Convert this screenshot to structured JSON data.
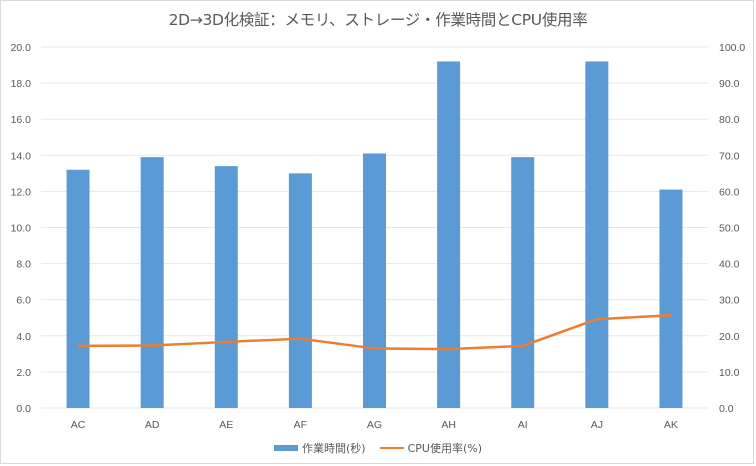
{
  "chart_data": {
    "type": "bar+line",
    "title": "2D→3D化検証：メモリ、ストレージ・作業時間とCPU使用率",
    "categories": [
      "AC",
      "AD",
      "AE",
      "AF",
      "AG",
      "AH",
      "AI",
      "AJ",
      "AK"
    ],
    "series": [
      {
        "name": "作業時間(秒)",
        "type": "bar",
        "axis": "left",
        "color": "#5B9BD5",
        "values": [
          13.2,
          13.9,
          13.4,
          13.0,
          14.1,
          19.2,
          13.9,
          19.2,
          12.1
        ]
      },
      {
        "name": "CPU使用率(%)",
        "type": "line",
        "axis": "right",
        "color": "#ED7D31",
        "values": [
          17.2,
          17.3,
          18.3,
          19.2,
          16.5,
          16.3,
          17.2,
          24.6,
          25.7
        ]
      }
    ],
    "y_left": {
      "ylim": [
        0,
        20
      ],
      "ticks": [
        "0.0",
        "2.0",
        "4.0",
        "6.0",
        "8.0",
        "10.0",
        "12.0",
        "14.0",
        "16.0",
        "18.0",
        "20.0"
      ]
    },
    "y_right": {
      "ylim": [
        0,
        100
      ],
      "ticks": [
        "0.0",
        "10.0",
        "20.0",
        "30.0",
        "40.0",
        "50.0",
        "60.0",
        "70.0",
        "80.0",
        "90.0",
        "100.0"
      ]
    },
    "grid": true,
    "legend_position": "bottom",
    "gridline_color": "#E7E7E7"
  }
}
